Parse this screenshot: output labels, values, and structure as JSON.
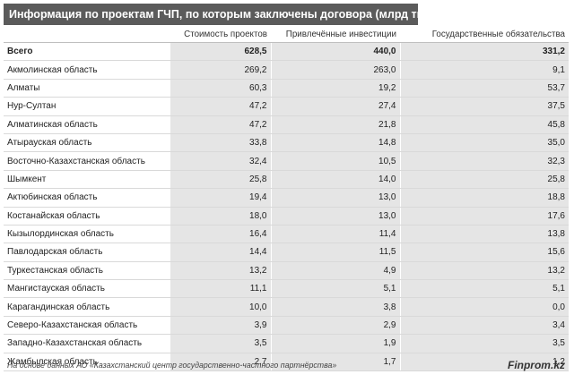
{
  "title": "Информация по проектам ГЧП, по которым заключены договора (млрд тг)",
  "columns": [
    "Стоимость проектов",
    "Привлечённые инвестиции",
    "Государственные обязательства"
  ],
  "rows": [
    {
      "name": "Всего",
      "cost": "628,5",
      "invest": "440,0",
      "oblig": "331,2"
    },
    {
      "name": "Акмолинская область",
      "cost": "269,2",
      "invest": "263,0",
      "oblig": "9,1"
    },
    {
      "name": "Алматы",
      "cost": "60,3",
      "invest": "19,2",
      "oblig": "53,7"
    },
    {
      "name": "Нур-Султан",
      "cost": "47,2",
      "invest": "27,4",
      "oblig": "37,5"
    },
    {
      "name": "Алматинская область",
      "cost": "47,2",
      "invest": "21,8",
      "oblig": "45,8"
    },
    {
      "name": "Атырауская область",
      "cost": "33,8",
      "invest": "14,8",
      "oblig": "35,0"
    },
    {
      "name": "Восточно-Казахстанская область",
      "cost": "32,4",
      "invest": "10,5",
      "oblig": "32,3"
    },
    {
      "name": "Шымкент",
      "cost": "25,8",
      "invest": "14,0",
      "oblig": "25,8"
    },
    {
      "name": "Актюбинская область",
      "cost": "19,4",
      "invest": "13,0",
      "oblig": "18,8"
    },
    {
      "name": "Костанайская область",
      "cost": "18,0",
      "invest": "13,0",
      "oblig": "17,6"
    },
    {
      "name": "Кызылординская область",
      "cost": "16,4",
      "invest": "11,4",
      "oblig": "13,8"
    },
    {
      "name": "Павлодарская область",
      "cost": "14,4",
      "invest": "11,5",
      "oblig": "15,6"
    },
    {
      "name": "Туркестанская область",
      "cost": "13,2",
      "invest": "4,9",
      "oblig": "13,2"
    },
    {
      "name": "Мангистауская область",
      "cost": "11,1",
      "invest": "5,1",
      "oblig": "5,1"
    },
    {
      "name": "Карагандинская область",
      "cost": "10,0",
      "invest": "3,8",
      "oblig": "0,0"
    },
    {
      "name": "Северо-Казахстанская область",
      "cost": "3,9",
      "invest": "2,9",
      "oblig": "3,4"
    },
    {
      "name": "Западно-Казахстанская область",
      "cost": "3,5",
      "invest": "1,9",
      "oblig": "3,5"
    },
    {
      "name": "Жамбылская область",
      "cost": "2,7",
      "invest": "1,7",
      "oblig": "1,2"
    }
  ],
  "footer": {
    "source": "На основе данных АО «Казахстанский центр государственно-частного партнёрства»",
    "brand": "Finprom.kz"
  }
}
